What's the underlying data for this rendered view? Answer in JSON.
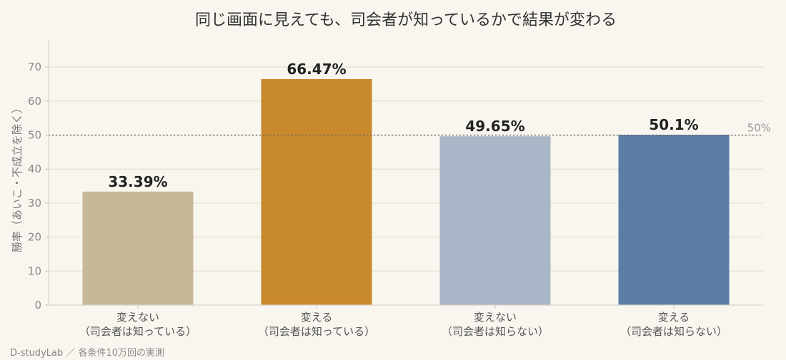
{
  "chart_data": {
    "type": "bar",
    "title": "同じ画面に見えても、司会者が知っているかで結果が変わる",
    "ylabel": "勝率（あいこ・不成立を除く）",
    "xlabel": "",
    "ylim": [
      0,
      78
    ],
    "yticks": [
      0,
      10,
      20,
      30,
      40,
      50,
      60,
      70
    ],
    "grid": true,
    "categories": [
      [
        "変えない",
        "（司会者は知っている）"
      ],
      [
        "変える",
        "（司会者は知っている）"
      ],
      [
        "変えない",
        "（司会者は知らない）"
      ],
      [
        "変える",
        "（司会者は知らない）"
      ]
    ],
    "values": [
      33.39,
      66.47,
      49.65,
      50.1
    ],
    "value_labels": [
      "33.39%",
      "66.47%",
      "49.65%",
      "50.1%"
    ],
    "colors": [
      "#c8b89a",
      "#c8892c",
      "#a9b6c7",
      "#5c7ea6"
    ],
    "reference_line": {
      "value": 50,
      "label": "50%"
    }
  },
  "footer": {
    "source_note": "D-studyLab ／ 各条件10万回の実測"
  }
}
